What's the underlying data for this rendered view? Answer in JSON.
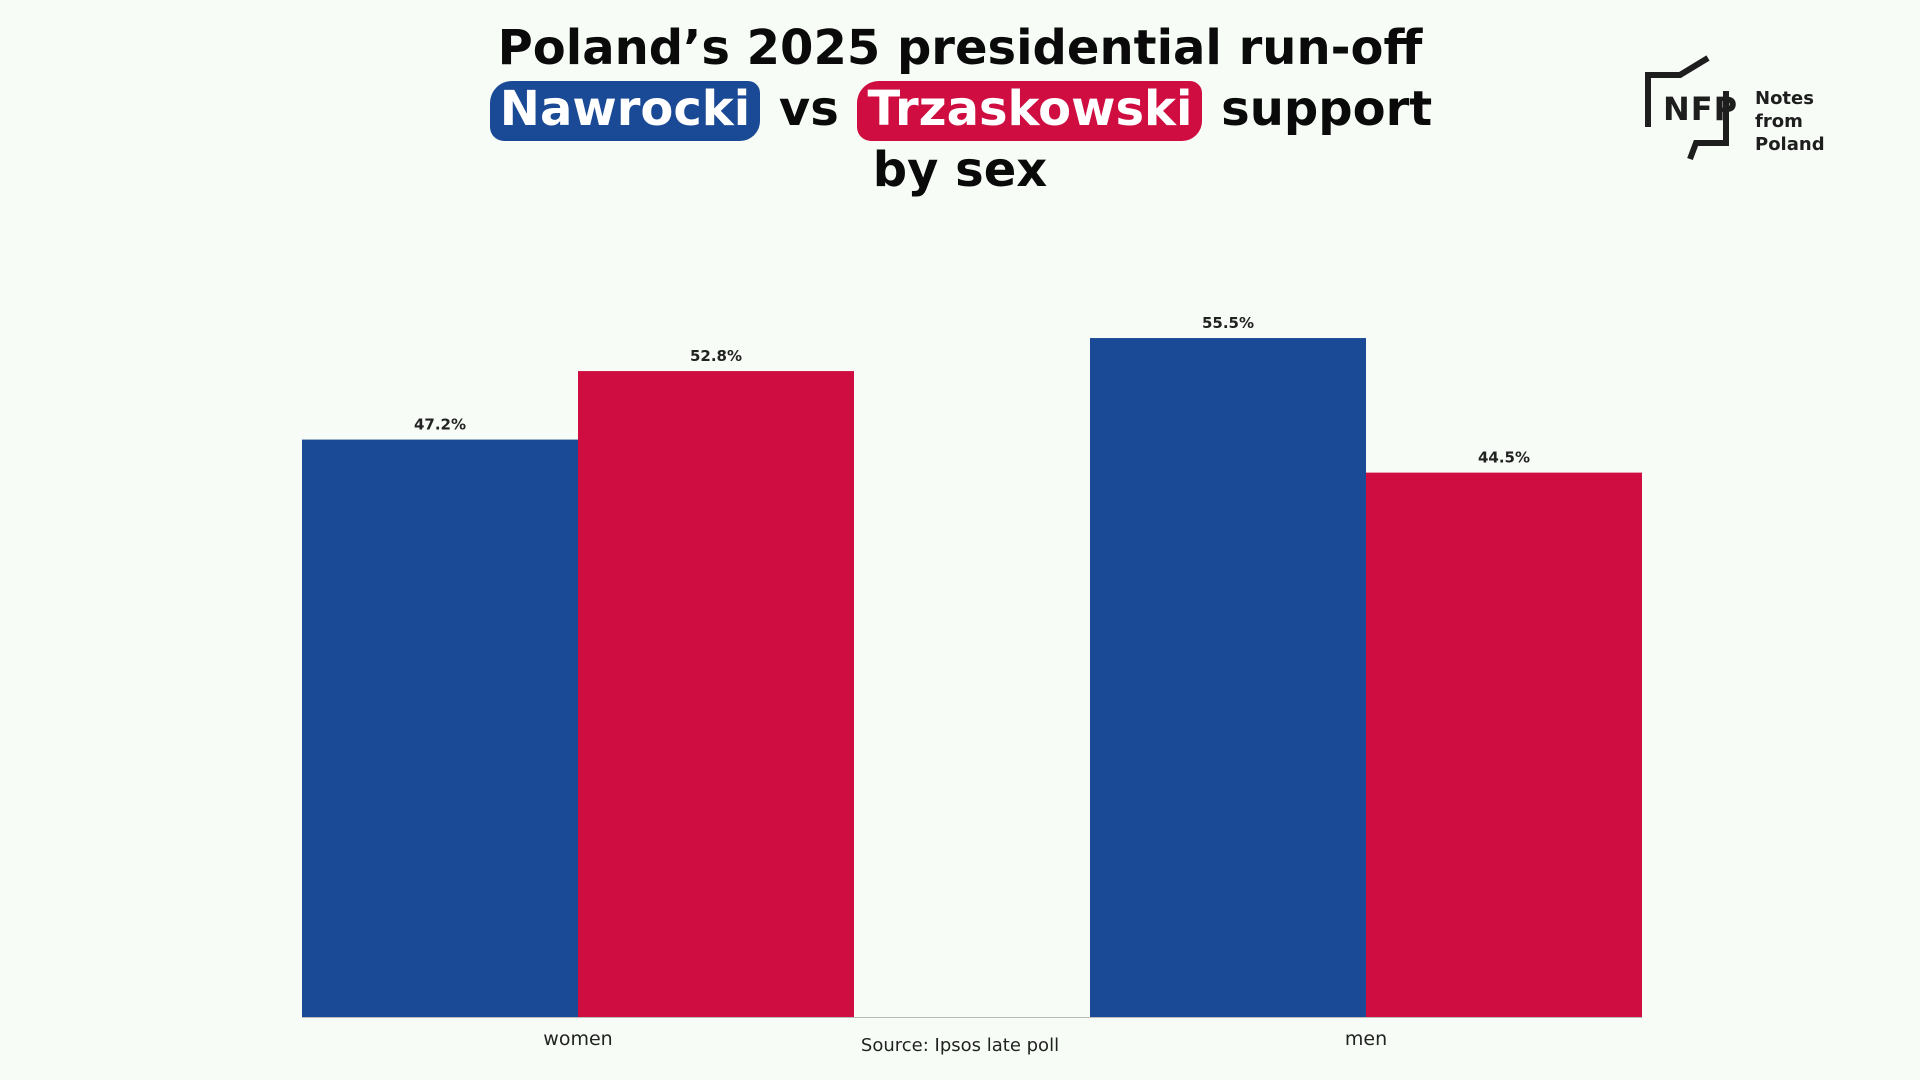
{
  "title": {
    "line1": "Poland’s 2025 presidential run-off",
    "name1": "Nawrocki",
    "vs": "vs",
    "name2": "Trzaskowski",
    "support": "support",
    "line3": "by sex"
  },
  "logo": {
    "letters": "NFP",
    "line1": "Notes from",
    "line2": "Poland"
  },
  "source": "Source: Ipsos late poll",
  "colors": {
    "nawrocki": "#1a4995",
    "trzaskowski": "#cf0d40",
    "background": "#f7fdf6"
  },
  "chart_data": {
    "type": "bar",
    "categories": [
      "women",
      "men"
    ],
    "series": [
      {
        "name": "Nawrocki",
        "values": [
          47.2,
          55.5
        ],
        "color": "#1a4995"
      },
      {
        "name": "Trzaskowski",
        "values": [
          52.8,
          44.5
        ],
        "color": "#cf0d40"
      }
    ],
    "value_suffix": "%",
    "ylim": [
      0,
      60
    ],
    "grid": false,
    "legend": "in-title"
  }
}
